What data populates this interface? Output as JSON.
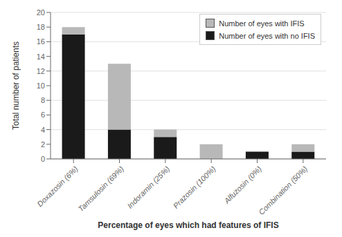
{
  "chart_data": {
    "type": "bar",
    "stacked": true,
    "categories": [
      "Doxazosin (6%)",
      "Tamsulosin (69%)",
      "Indoramin (25%)",
      "Prazosin (100%)",
      "Alfuzosin (0%)",
      "Combination (50%)"
    ],
    "series": [
      {
        "name": "Number of eyes with no IFIS",
        "color": "#1a1a1a",
        "values": [
          17,
          4,
          3,
          0,
          1,
          1
        ]
      },
      {
        "name": "Number of eyes with IFIS",
        "color": "#b8b8b8",
        "values": [
          1,
          9,
          1,
          2,
          0,
          1
        ]
      }
    ],
    "xlabel": "Percentage of eyes which had features of IFIS",
    "ylabel": "Total number of patients",
    "ylim": [
      0,
      20
    ],
    "yticks": [
      0,
      2,
      4,
      6,
      8,
      10,
      12,
      14,
      16,
      18,
      20
    ],
    "grid": true,
    "legend": "upper right"
  }
}
